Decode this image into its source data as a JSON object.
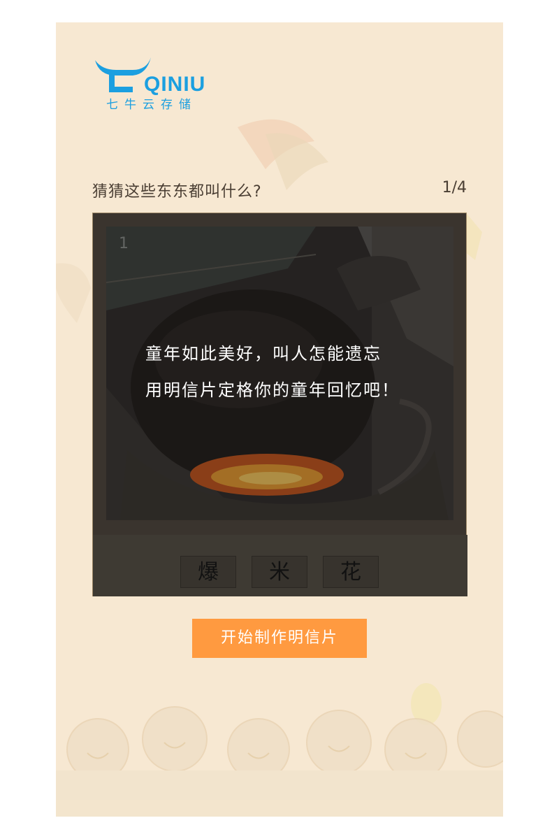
{
  "logo": {
    "name": "QINIU",
    "subtitle": "七牛云存储",
    "color": "#1b9fe0"
  },
  "quiz": {
    "question": "猜猜这些东东都叫什么?",
    "progress": "1/4",
    "photo_number": "1",
    "photo_text_line1": "童年如此美好，叫人怎能遗忘",
    "photo_text_line2": "用明信片定格你的童年回忆吧！",
    "answer_chars": [
      "爆",
      "米",
      "花"
    ]
  },
  "cta": {
    "label": "开始制作明信片",
    "color": "#ff9a40"
  },
  "colors": {
    "background": "#f7e8d2",
    "frame": "#3a342e"
  }
}
